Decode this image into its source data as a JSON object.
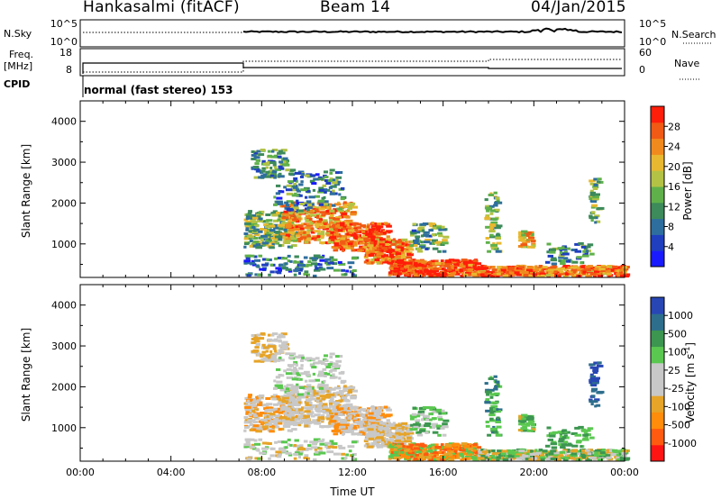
{
  "header": {
    "station": "Hankasalmi (fitACF)",
    "beam": "Beam 14",
    "date": "04/Jan/2015"
  },
  "noise_panel": {
    "left_label": "N.Sky",
    "right_label": "N.Search",
    "left_ticks": [
      "10^5",
      "10^0"
    ],
    "right_ticks": [
      "10^5",
      "10^0"
    ]
  },
  "freq_panel": {
    "left_label_1": "Freq.",
    "left_label_2": "[MHz]",
    "left_ticks": [
      "18",
      "8"
    ],
    "right_label": "Nave",
    "right_ticks": [
      "60",
      "0"
    ]
  },
  "cpid": {
    "label": "CPID",
    "mode": "normal (fast stereo) 153"
  },
  "colors": {
    "frame": "#000000",
    "power_scale": [
      "#1a1aff",
      "#1f3fbf",
      "#2e6e9e",
      "#3d8a5a",
      "#5fb04a",
      "#b3c244",
      "#e8b830",
      "#f08a1e",
      "#f05a14",
      "#ff1e0a"
    ],
    "velocity_scale": [
      "#ff1414",
      "#ff5a0f",
      "#ff8c0a",
      "#e6a428",
      "#c8c8c8",
      "#c8c8c8",
      "#5ac850",
      "#3c9650",
      "#2d6e8c",
      "#2846b4"
    ]
  },
  "chart_data": [
    {
      "type": "heatmap",
      "title": "",
      "ylabel": "Slant Range [km]",
      "xlabel": "",
      "x_ticks": [
        "00:00",
        "04:00",
        "08:00",
        "12:00",
        "16:00",
        "20:00",
        "00:00"
      ],
      "y_ticks": [
        "1000",
        "2000",
        "3000",
        "4000"
      ],
      "xlim_hours": [
        0,
        24
      ],
      "ylim_km": [
        180,
        4500
      ],
      "colorbar": {
        "label": "Power [dB]",
        "ticks": [
          "28",
          "24",
          "20",
          "16",
          "12",
          "8",
          "4"
        ]
      }
    },
    {
      "type": "heatmap",
      "title": "",
      "ylabel": "Slant Range [km]",
      "xlabel": "Time UT",
      "x_ticks": [
        "00:00",
        "04:00",
        "08:00",
        "12:00",
        "16:00",
        "20:00",
        "00:00"
      ],
      "y_ticks": [
        "1000",
        "2000",
        "3000",
        "4000"
      ],
      "xlim_hours": [
        0,
        24
      ],
      "ylim_km": [
        180,
        4500
      ],
      "colorbar": {
        "label": "Velocity [m s",
        "label_superscript": "-1",
        "label_end": "]",
        "ticks": [
          "1000",
          "500",
          "100",
          "25",
          "-25",
          "-100",
          "-500",
          "-1000"
        ]
      }
    }
  ]
}
